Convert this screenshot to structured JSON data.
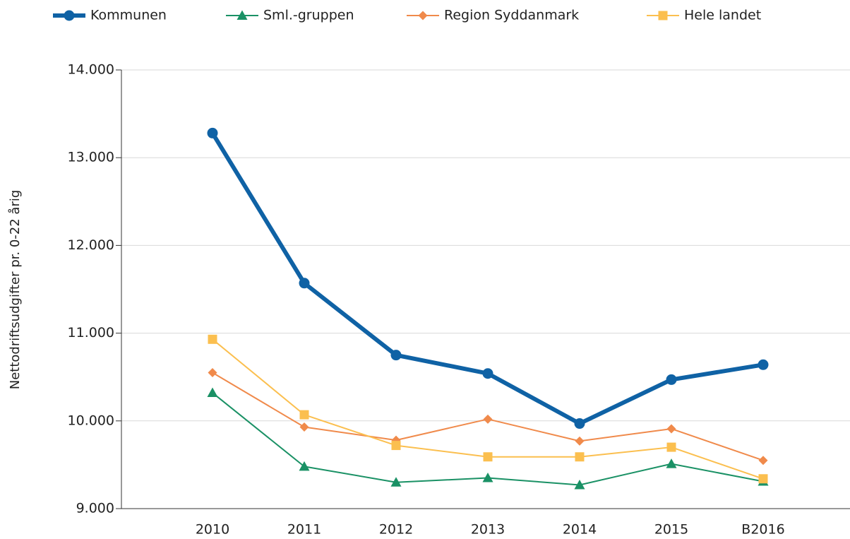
{
  "chart_data": {
    "type": "line",
    "y_label": "Nettodriftsudgifter pr. 0-22 årig",
    "categories": [
      "2010",
      "2011",
      "2012",
      "2013",
      "2014",
      "2015",
      "B2016"
    ],
    "series": [
      {
        "name": "Kommunen",
        "color": "#0f62a5",
        "marker": "circle",
        "line_width": 6,
        "values": [
          13280,
          11570,
          10750,
          10540,
          9970,
          10470,
          10640
        ]
      },
      {
        "name": "Sml.-gruppen",
        "color": "#1a9165",
        "marker": "triangle",
        "line_width": 2,
        "values": [
          10320,
          9480,
          9300,
          9350,
          9270,
          9510,
          9310
        ]
      },
      {
        "name": "Region Syddanmark",
        "color": "#f08a4b",
        "marker": "diamond",
        "line_width": 2,
        "values": [
          10550,
          9930,
          9780,
          10020,
          9770,
          9910,
          9550
        ]
      },
      {
        "name": "Hele landet",
        "color": "#fbbf4f",
        "marker": "square",
        "line_width": 2,
        "values": [
          10930,
          10070,
          9720,
          9590,
          9590,
          9700,
          9340
        ]
      }
    ],
    "ylim": [
      9000,
      14000
    ],
    "yticks": [
      {
        "value": 9000,
        "label": "9.000"
      },
      {
        "value": 10000,
        "label": "10.000"
      },
      {
        "value": 11000,
        "label": "11.000"
      },
      {
        "value": 12000,
        "label": "12.000"
      },
      {
        "value": 13000,
        "label": "13.000"
      },
      {
        "value": 14000,
        "label": "14.000"
      }
    ],
    "grid": true,
    "legend": "top"
  }
}
